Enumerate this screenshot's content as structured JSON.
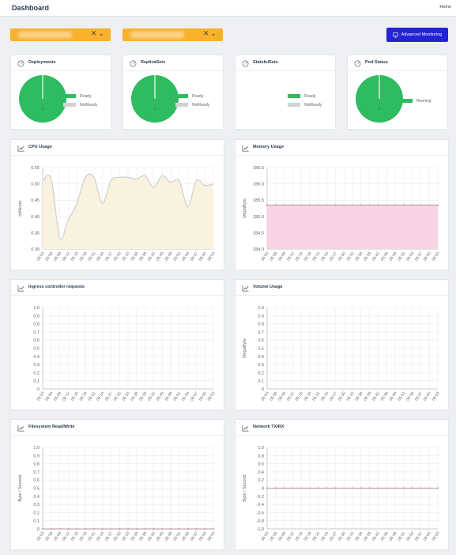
{
  "header": {
    "title": "Dashboard",
    "home_link": "Home"
  },
  "filters": {
    "dropdown_1": {
      "value": ""
    },
    "dropdown_2": {
      "value": ""
    },
    "clear_glyph": "✕",
    "open_glyph": "⌄"
  },
  "advanced_button": {
    "label": "Advanced Monitoring",
    "icon": "monitor-icon"
  },
  "colors": {
    "green": "#2fbb5f",
    "grey": "#d0d2d6",
    "orange": "#f8b12d",
    "button": "#2323d8",
    "cpu_line": "#cfcfcf",
    "cpu_fill": "#f9f2de",
    "mem_line": "#c8a8b8",
    "mem_fill": "#f6d4e3"
  },
  "status_cards": [
    {
      "title": "Deployments",
      "icon": "gauge-icon",
      "pie": true,
      "count_label": "1",
      "legend": [
        {
          "label": "Ready",
          "color": "#2fbb5f"
        },
        {
          "label": "NotReady",
          "color": "#d0d2d6"
        }
      ]
    },
    {
      "title": "ReplicaSets",
      "icon": "gauge-icon",
      "pie": true,
      "count_label": "1",
      "legend": [
        {
          "label": "Ready",
          "color": "#2fbb5f"
        },
        {
          "label": "NotReady",
          "color": "#d0d2d6"
        }
      ]
    },
    {
      "title": "StatefulSets",
      "icon": "gauge-icon",
      "pie": false,
      "count_label": "",
      "legend": [
        {
          "label": "Ready",
          "color": "#2fbb5f"
        },
        {
          "label": "NotReady",
          "color": "#d0d2d6"
        }
      ]
    },
    {
      "title": "Pod Status",
      "icon": "gauge-icon",
      "pie": true,
      "count_label": "1",
      "legend": [
        {
          "label": "Running",
          "color": "#2fbb5f"
        }
      ]
    }
  ],
  "chart_data": [
    {
      "title": "CPU Usage",
      "type": "area",
      "ylabel": "millicore",
      "ylim": [
        0.3,
        0.55
      ],
      "yticks": [
        "0.30",
        "0.35",
        "0.40",
        "0.45",
        "0.50",
        "0.55"
      ],
      "x": [
        "05:03",
        "05:06",
        "05:09",
        "05:12",
        "05:15",
        "05:18",
        "05:21",
        "05:24",
        "05:27",
        "05:30",
        "05:33",
        "05:36",
        "05:39",
        "05:42",
        "05:45",
        "05:48",
        "05:51",
        "05:54",
        "05:57",
        "06:00",
        "06:03"
      ],
      "series": [
        {
          "values": [
            0.51,
            0.515,
            0.335,
            0.39,
            0.44,
            0.52,
            0.52,
            0.44,
            0.51,
            0.52,
            0.52,
            0.515,
            0.525,
            0.49,
            0.525,
            0.505,
            0.51,
            0.43,
            0.51,
            0.495,
            0.5
          ]
        }
      ],
      "line_color": "#cfcfcf",
      "fill_color": "#f9f2de"
    },
    {
      "title": "Memory Usage",
      "type": "area",
      "ylabel": "MegaByte",
      "ylim": [
        284.0,
        286.5
      ],
      "yticks": [
        "284.0",
        "284.5",
        "285.0",
        "285.5",
        "286.0",
        "286.5"
      ],
      "x": [
        "05:03",
        "05:06",
        "05:09",
        "05:12",
        "05:15",
        "05:18",
        "05:21",
        "05:24",
        "05:27",
        "05:30",
        "05:33",
        "05:36",
        "05:39",
        "05:42",
        "05:45",
        "05:48",
        "05:51",
        "05:54",
        "05:57",
        "06:00",
        "06:03"
      ],
      "series": [
        {
          "values": [
            285.35,
            285.35,
            285.35,
            285.35,
            285.35,
            285.35,
            285.35,
            285.35,
            285.35,
            285.35,
            285.35,
            285.35,
            285.35,
            285.35,
            285.35,
            285.35,
            285.35,
            285.35,
            285.35,
            285.35,
            285.35
          ]
        }
      ],
      "line_color": "#c8a8b8",
      "fill_color": "#f6d4e3"
    },
    {
      "title": "Ingress controller requests",
      "type": "line",
      "ylabel": "",
      "ylim": [
        0,
        1.0
      ],
      "yticks": [
        "0",
        "0.1",
        "0.2",
        "0.3",
        "0.4",
        "0.5",
        "0.6",
        "0.7",
        "0.8",
        "0.9",
        "1.0"
      ],
      "x": [
        "05:03",
        "05:06",
        "05:09",
        "05:12",
        "05:15",
        "05:18",
        "05:21",
        "05:24",
        "05:27",
        "05:30",
        "05:33",
        "05:36",
        "05:39",
        "05:42",
        "05:45",
        "05:48",
        "05:51",
        "05:54",
        "05:57",
        "06:00",
        "06:03"
      ],
      "series": []
    },
    {
      "title": "Volume Usage",
      "type": "line",
      "ylabel": "MegaByte",
      "ylim": [
        0,
        1.0
      ],
      "yticks": [
        "0",
        "0.1",
        "0.2",
        "0.3",
        "0.4",
        "0.5",
        "0.6",
        "0.7",
        "0.8",
        "0.9",
        "1.0"
      ],
      "x": [
        "05:03",
        "05:06",
        "05:09",
        "05:12",
        "05:15",
        "05:18",
        "05:21",
        "05:24",
        "05:27",
        "05:30",
        "05:33",
        "05:36",
        "05:39",
        "05:42",
        "05:45",
        "05:48",
        "05:51",
        "05:54",
        "05:57",
        "06:00",
        "06:03"
      ],
      "series": []
    },
    {
      "title": "Filesystem Read/Write",
      "type": "line",
      "ylabel": "Byte / Second",
      "ylim": [
        0,
        1.0
      ],
      "yticks": [
        "0",
        "0.1",
        "0.2",
        "0.3",
        "0.4",
        "0.5",
        "0.6",
        "0.7",
        "0.8",
        "0.9",
        "1.0"
      ],
      "x": [
        "05:03",
        "05:06",
        "05:09",
        "05:12",
        "05:15",
        "05:18",
        "05:21",
        "05:24",
        "05:27",
        "05:30",
        "05:33",
        "05:36",
        "05:39",
        "05:42",
        "05:45",
        "05:48",
        "05:51",
        "05:54",
        "05:57",
        "06:00",
        "06:03"
      ],
      "series": [
        {
          "values": [
            0,
            0,
            0,
            0,
            0,
            0,
            0,
            0,
            0,
            0,
            0,
            0,
            0,
            0,
            0,
            0,
            0,
            0,
            0,
            0,
            0
          ]
        }
      ],
      "line_color": "#c8a8b8",
      "fill_color": "none"
    },
    {
      "title": "Network TX/RX",
      "type": "line",
      "ylabel": "Byte / Second",
      "ylim": [
        -1.0,
        1.0
      ],
      "yticks": [
        "-1.0",
        "-0.8",
        "-0.6",
        "-0.4",
        "-0.2",
        "0",
        "0.2",
        "0.4",
        "0.6",
        "0.8",
        "1.0"
      ],
      "x": [
        "05:03",
        "05:06",
        "05:09",
        "05:12",
        "05:15",
        "05:18",
        "05:21",
        "05:24",
        "05:27",
        "05:30",
        "05:33",
        "05:36",
        "05:39",
        "05:42",
        "05:45",
        "05:48",
        "05:51",
        "05:54",
        "05:57",
        "06:00",
        "06:03"
      ],
      "series": [
        {
          "values": [
            0,
            0,
            0,
            0,
            0,
            0,
            0,
            0,
            0,
            0,
            0,
            0,
            0,
            0,
            0,
            0,
            0,
            0,
            0,
            0,
            0
          ]
        }
      ],
      "line_color": "#c8a8b8",
      "fill_color": "none"
    }
  ]
}
